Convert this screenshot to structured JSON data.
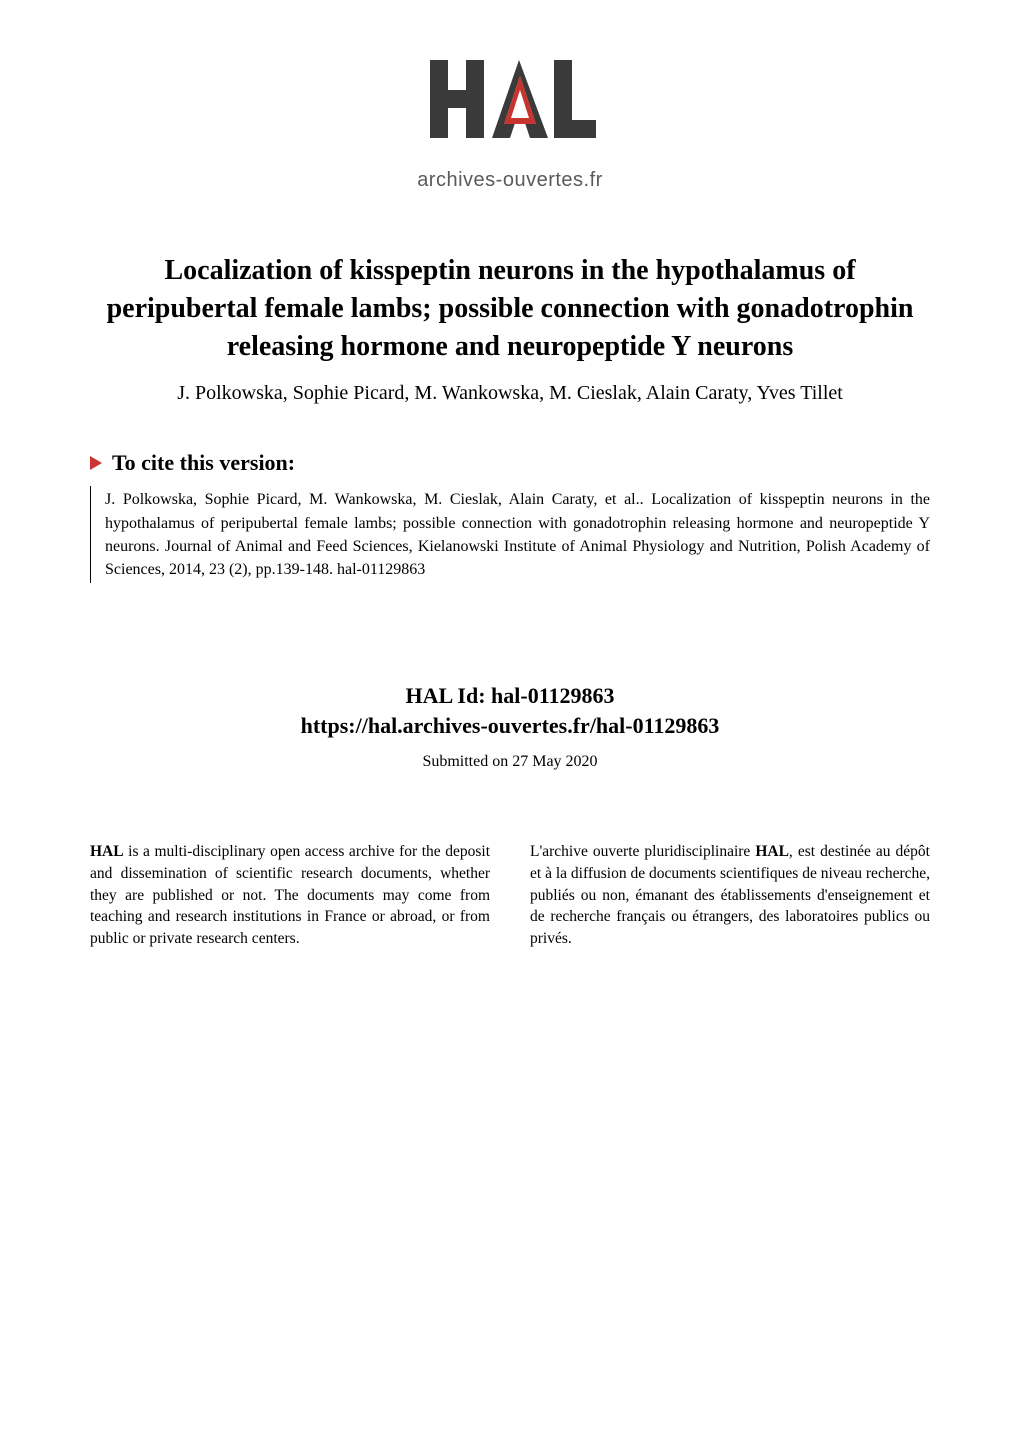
{
  "logo": {
    "caption": "archives-ouvertes.fr",
    "letters_color": "#3a3a3a",
    "accent_color": "#c7342f",
    "caption_color": "#5a5a5a"
  },
  "paper": {
    "title": "Localization of kisspeptin neurons in the hypothalamus of peripubertal female lambs; possible connection with gonadotrophin releasing hormone and neuropeptide Y neurons",
    "authors": "J. Polkowska, Sophie Picard, M. Wankowska, M. Cieslak, Alain Caraty, Yves Tillet"
  },
  "cite": {
    "label": "To cite this version:",
    "text": "J. Polkowska, Sophie Picard, M. Wankowska, M. Cieslak, Alain Caraty, et al.. Localization of kisspeptin neurons in the hypothalamus of peripubertal female lambs; possible connection with gonadotrophin releasing hormone and neuropeptide Y neurons. Journal of Animal and Feed Sciences, Kielanowski Institute of Animal Physiology and Nutrition, Polish Academy of Sciences, 2014, 23 (2), pp.139-148. hal-01129863"
  },
  "hal": {
    "id_label": "HAL Id: hal-01129863",
    "url": "https://hal.archives-ouvertes.fr/hal-01129863",
    "submitted": "Submitted on 27 May 2020"
  },
  "columns": {
    "left_html": "<b>HAL</b> is a multi-disciplinary open access archive for the deposit and dissemination of scientific research documents, whether they are published or not. The documents may come from teaching and research institutions in France or abroad, or from public or private research centers.",
    "right_html": "L'archive ouverte pluridisciplinaire <b>HAL</b>, est destinée au dépôt et à la diffusion de documents scientifiques de niveau recherche, publiés ou non, émanant des établissements d'enseignement et de recherche français ou étrangers, des laboratoires publics ou privés."
  },
  "style": {
    "title_fontsize": 28,
    "authors_fontsize": 20,
    "cite_label_fontsize": 22,
    "citation_fontsize": 16,
    "hal_fontsize": 22,
    "submitted_fontsize": 16,
    "column_fontsize": 15.5,
    "background_color": "#ffffff",
    "text_color": "#000000",
    "triangle_color": "#c33"
  }
}
